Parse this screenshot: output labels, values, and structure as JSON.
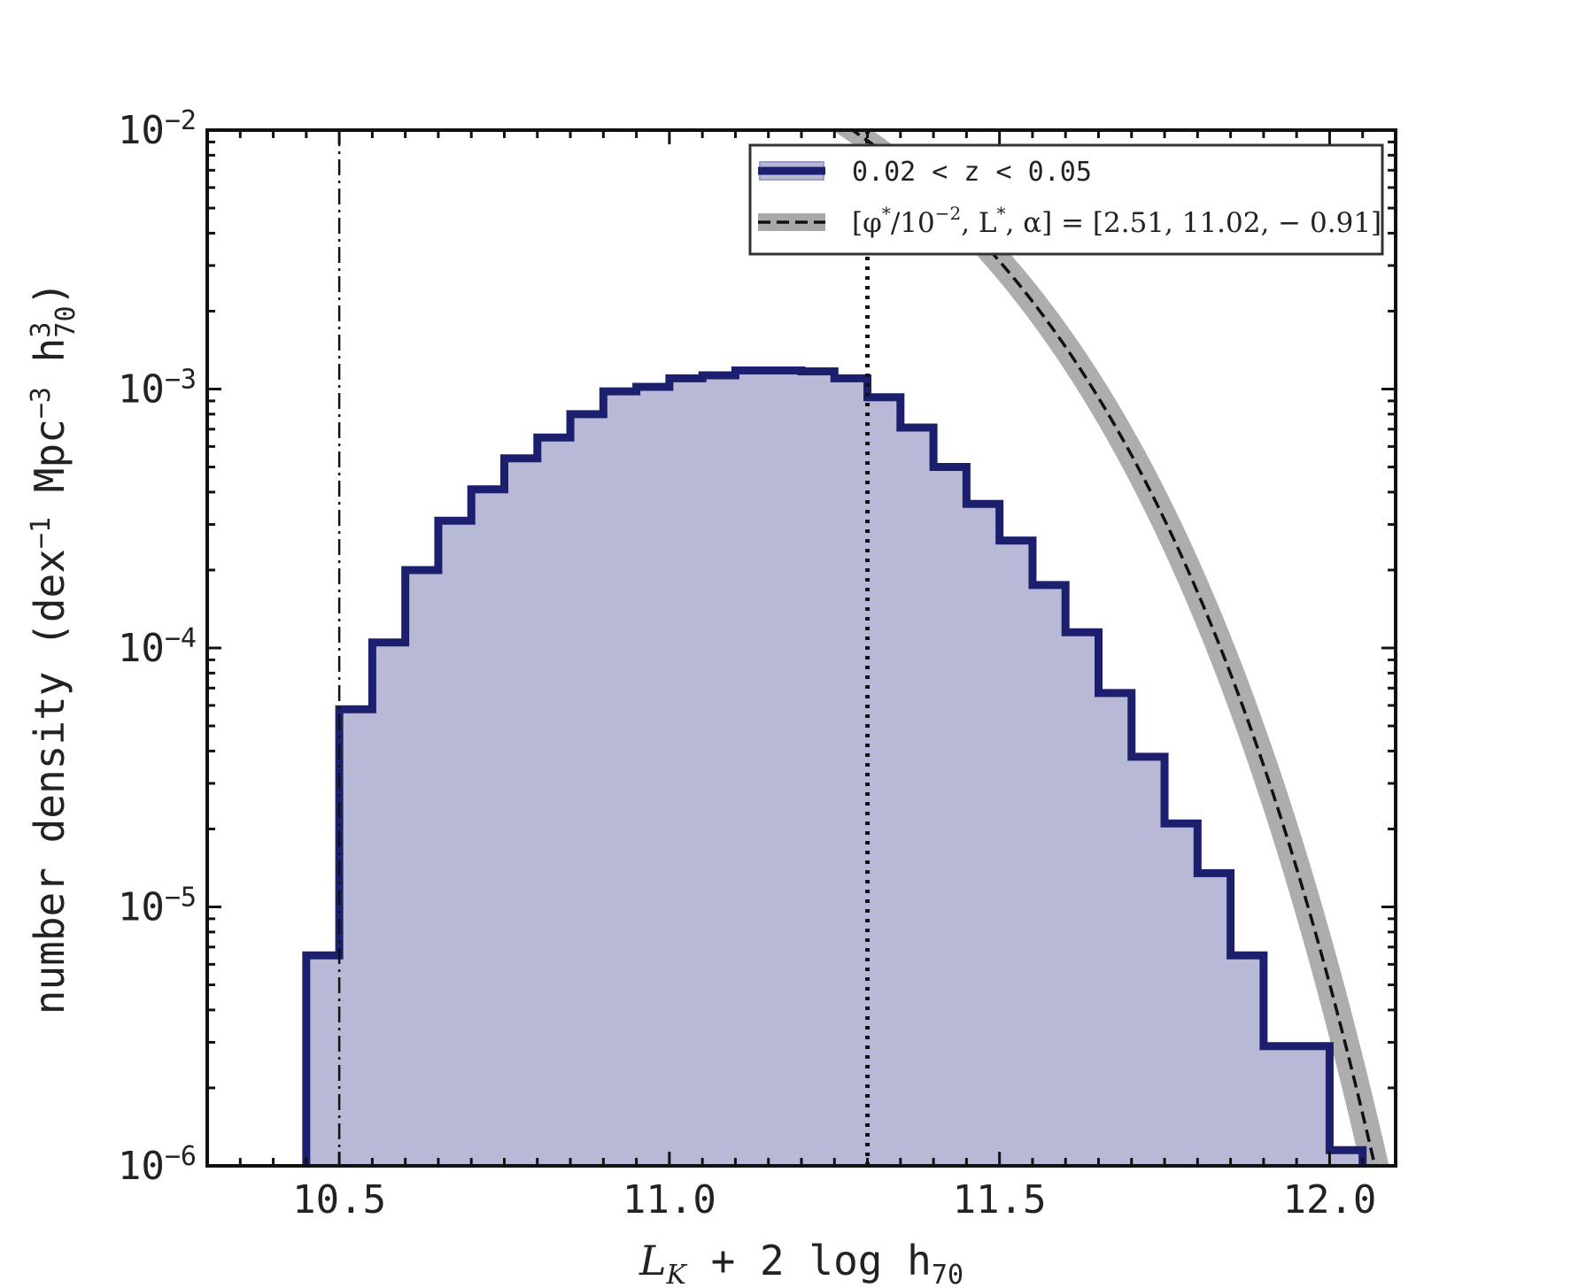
{
  "chart_data": {
    "type": "area",
    "xlabel": {
      "main": "L",
      "sub": "K",
      "rest": " + 2 log h",
      "sub2": "70"
    },
    "ylabel": {
      "main": "number density (dex",
      "exp1": "−1",
      "mid": " Mpc",
      "exp2": "−3",
      "rest": " h",
      "exp3": "3",
      "sub3": "70",
      "close": ")"
    },
    "xlim": [
      10.3,
      12.1
    ],
    "ylim": [
      1e-06,
      0.01
    ],
    "yscale": "log",
    "x_ticks": [
      "10.5",
      "11.0",
      "11.5",
      "12.0"
    ],
    "x_tick_values": [
      10.5,
      11.0,
      11.5,
      12.0
    ],
    "y_ticks": [
      {
        "value": 1e-06,
        "base": "10",
        "exp": "−6"
      },
      {
        "value": 1e-05,
        "base": "10",
        "exp": "−5"
      },
      {
        "value": 0.0001,
        "base": "10",
        "exp": "−4"
      },
      {
        "value": 0.001,
        "base": "10",
        "exp": "−3"
      },
      {
        "value": 0.01,
        "base": "10",
        "exp": "−2"
      }
    ],
    "histogram": {
      "name": "0.02 < z < 0.05",
      "color": "#1c1f6e",
      "fill": "#b8b9d6",
      "edges": [
        10.45,
        10.5,
        10.55,
        10.6,
        10.65,
        10.7,
        10.75,
        10.8,
        10.85,
        10.9,
        10.95,
        11.0,
        11.05,
        11.1,
        11.15,
        11.2,
        11.25,
        11.3,
        11.35,
        11.4,
        11.45,
        11.5,
        11.55,
        11.6,
        11.65,
        11.7,
        11.75,
        11.8,
        11.85,
        11.9,
        11.95,
        12.0,
        12.05
      ],
      "values": [
        6.5e-06,
        5.8e-05,
        0.000105,
        0.0002,
        0.00031,
        0.00041,
        0.00054,
        0.00065,
        0.0008,
        0.00098,
        0.00102,
        0.0011,
        0.00113,
        0.00118,
        0.00118,
        0.00117,
        0.0011,
        0.00093,
        0.00071,
        0.0005,
        0.00036,
        0.00026,
        0.000175,
        0.000115,
        6.7e-05,
        3.8e-05,
        2.1e-05,
        1.35e-05,
        6.5e-06,
        2.9e-06,
        2.9e-06,
        1.15e-06
      ]
    },
    "schechter_fit": {
      "name": "[φ*/10⁻², L*, α] = [2.51, 11.02, −0.91]",
      "phi_star": 0.0251,
      "L_star": 11.02,
      "alpha": -0.91,
      "line_color": "#111111",
      "band_color": "#999999"
    },
    "vlines": [
      {
        "x": 10.5,
        "style": "dashdot"
      },
      {
        "x": 11.3,
        "style": "dotted"
      }
    ]
  },
  "legend": {
    "hist_label": "0.02 < z < 0.05",
    "fit_parts": [
      "[φ",
      "*",
      "/10",
      "−2",
      ", L",
      "*",
      ", α] = [2.51, 11.02, − 0.91]"
    ]
  }
}
